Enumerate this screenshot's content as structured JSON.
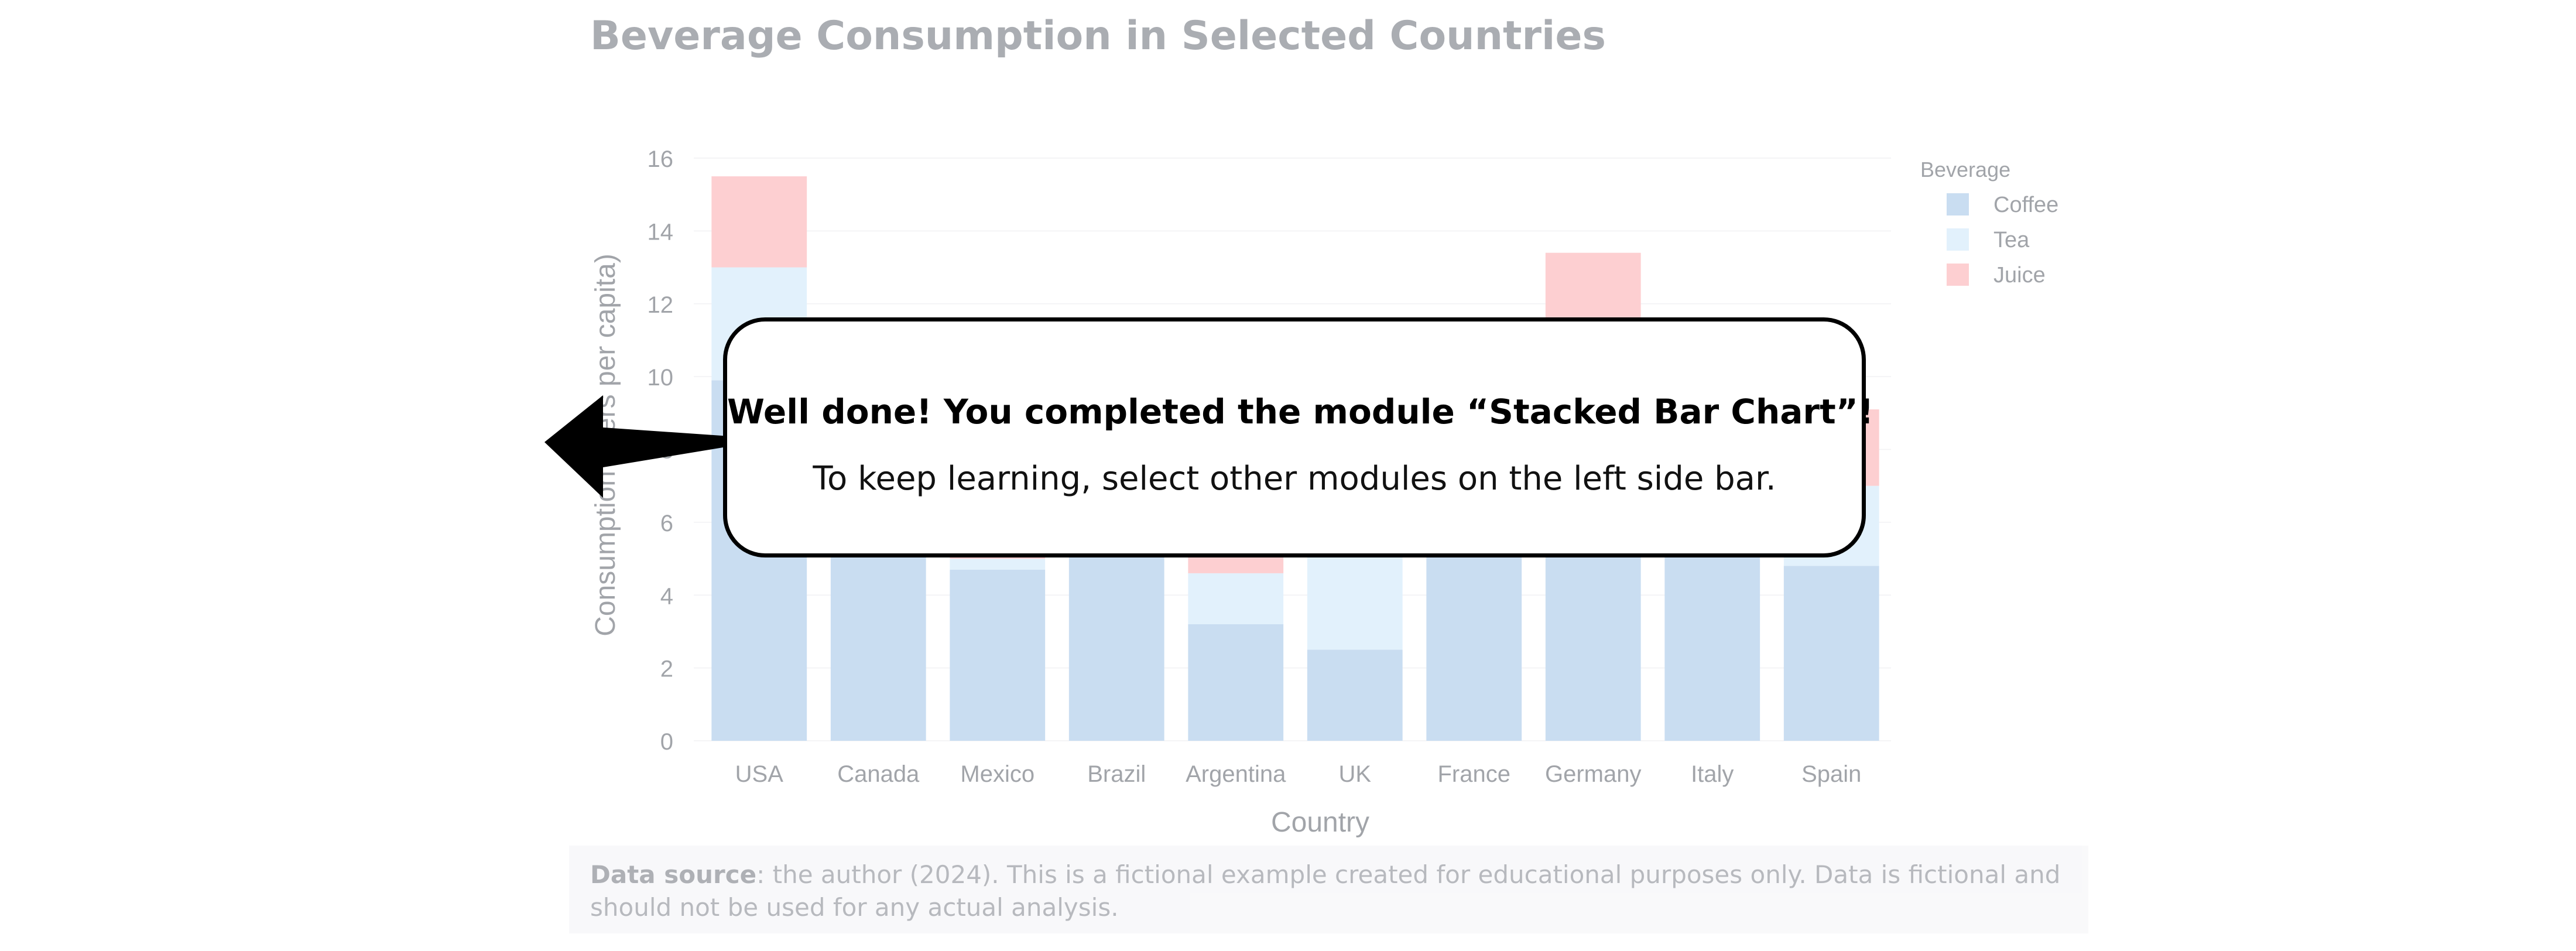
{
  "callout": {
    "headline": "Well done! You completed the module “Stacked Bar Chart”!",
    "body": "To keep learning, select other modules on the left side bar."
  },
  "footer": {
    "source_label": "Data source",
    "source_text": ": the author (2024). This is a fictional example created for educational purposes only. Data is fictional and should not be used for any actual analysis."
  },
  "pointer": {
    "icon": "arrow-left-icon",
    "color": "#000000"
  },
  "chart_data": {
    "type": "bar",
    "stacked": true,
    "title": "Beverage Consumption in Selected Countries",
    "xlabel": "Country",
    "ylabel": "Consumption (liters per capita)",
    "ylim": [
      0,
      16
    ],
    "yticks": [
      0,
      2,
      4,
      6,
      8,
      10,
      12,
      14,
      16
    ],
    "grid": true,
    "legend": {
      "title": "Beverage",
      "position": "top-right"
    },
    "categories": [
      "USA",
      "Canada",
      "Mexico",
      "Brazil",
      "Argentina",
      "UK",
      "France",
      "Germany",
      "Italy",
      "Spain"
    ],
    "series": [
      {
        "name": "Coffee",
        "color": "#9dc3e6",
        "values": [
          9.9,
          6.5,
          4.7,
          7.5,
          3.2,
          2.5,
          6.8,
          7.8,
          6.0,
          4.8
        ]
      },
      {
        "name": "Tea",
        "color": "#cce6fb",
        "values": [
          3.1,
          2.5,
          0.3,
          0.5,
          1.4,
          4.5,
          0.7,
          1.2,
          1.0,
          2.2
        ]
      },
      {
        "name": "Juice",
        "color": "#fda9ad",
        "values": [
          2.5,
          1.5,
          0.6,
          0.5,
          0.5,
          1.5,
          0.5,
          4.4,
          1.5,
          2.1
        ]
      }
    ]
  }
}
